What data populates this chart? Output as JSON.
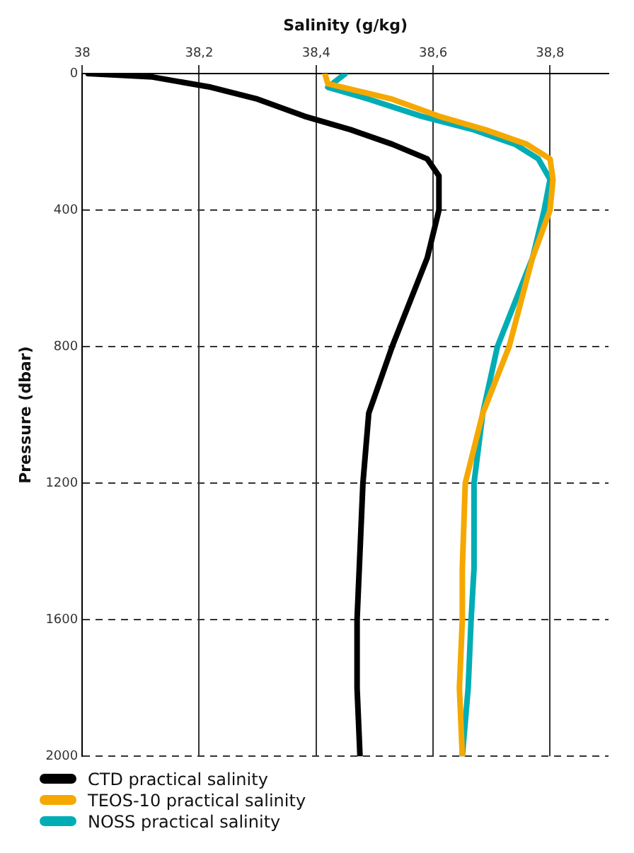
{
  "chart_data": {
    "type": "line",
    "xlabel": "Salinity (g/kg)",
    "ylabel": "Pressure (dbar)",
    "xlim": [
      38,
      38.9
    ],
    "xticks": [
      38,
      {
        "value": 38.2,
        "label": "38,2"
      },
      {
        "value": 38.4,
        "label": "38,4"
      },
      {
        "value": 38.6,
        "label": "38,6"
      },
      {
        "value": 38.8,
        "label": "38,8"
      }
    ],
    "ylim": [
      2000,
      0
    ],
    "yticks": [
      0,
      400,
      800,
      1200,
      1600,
      2000
    ],
    "grid": true,
    "legend": "bottom",
    "marker": "none",
    "line_style": "solid",
    "series": [
      {
        "name": "CTD practical salinity",
        "color": "#000000",
        "x": [
          38.01,
          38.12,
          38.22,
          38.3,
          38.38,
          38.46,
          38.53,
          38.59,
          38.61,
          38.61,
          38.59,
          38.53,
          38.49,
          38.48,
          38.47,
          38.47,
          38.475
        ],
        "values": [
          0,
          10,
          40,
          75,
          125,
          165,
          207,
          250,
          300,
          400,
          540,
          800,
          995,
          1200,
          1600,
          1800,
          2000
        ]
      },
      {
        "name": "TEOS-10 practical salinity",
        "color": "#f5a800",
        "x": [
          38.415,
          38.42,
          38.53,
          38.61,
          38.69,
          38.76,
          38.8,
          38.805,
          38.8,
          38.77,
          38.73,
          38.685,
          38.655,
          38.65,
          38.65,
          38.645,
          38.65
        ],
        "values": [
          0,
          30,
          75,
          125,
          165,
          207,
          250,
          310,
          400,
          540,
          800,
          995,
          1200,
          1450,
          1600,
          1800,
          2000
        ]
      },
      {
        "name": "NOSS practical salinity",
        "color": "#00adb5",
        "x": [
          38.45,
          38.42,
          38.49,
          38.58,
          38.67,
          38.74,
          38.78,
          38.8,
          38.79,
          38.77,
          38.71,
          38.685,
          38.67,
          38.67,
          38.665,
          38.66,
          38.65
        ],
        "values": [
          0,
          40,
          75,
          125,
          165,
          207,
          250,
          310,
          400,
          540,
          800,
          995,
          1200,
          1450,
          1600,
          1800,
          2000
        ]
      }
    ]
  }
}
